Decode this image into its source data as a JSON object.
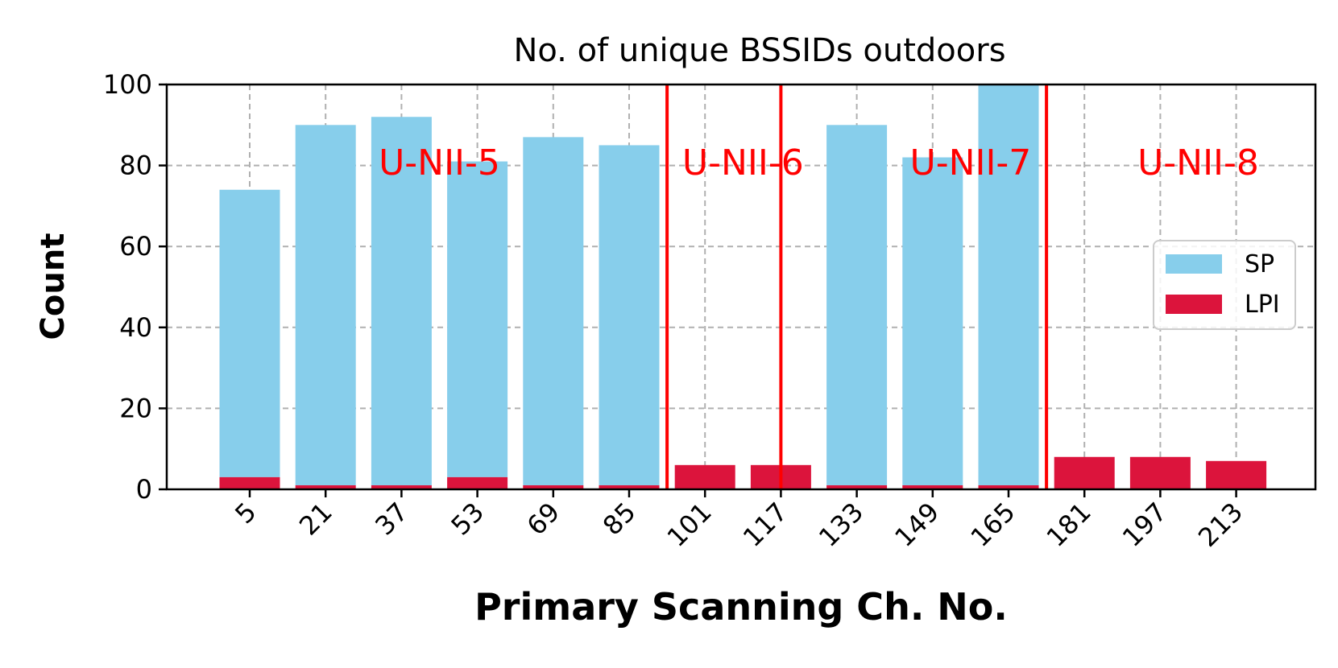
{
  "chart_data": {
    "type": "bar",
    "stacked": true,
    "title": "No. of unique BSSIDs outdoors",
    "xlabel": "Primary Scanning Ch. No.",
    "ylabel": "Count",
    "ylim": [
      0,
      100
    ],
    "yticks": [
      "0",
      "20",
      "40",
      "60",
      "80",
      "100"
    ],
    "grid": true,
    "legend_position": "center-right",
    "categories": [
      "5",
      "21",
      "37",
      "53",
      "69",
      "85",
      "101",
      "117",
      "133",
      "149",
      "165",
      "181",
      "197",
      "213"
    ],
    "series": [
      {
        "name": "SP",
        "color": "#87ceeb",
        "values": [
          71,
          89,
          91,
          78,
          86,
          84,
          0,
          0,
          89,
          81,
          99,
          0,
          0,
          0
        ]
      },
      {
        "name": "LPI",
        "color": "#dc143c",
        "values": [
          3,
          1,
          1,
          3,
          1,
          1,
          6,
          6,
          1,
          1,
          1,
          8,
          8,
          7
        ]
      }
    ],
    "band_labels": [
      {
        "text": "U-NII-5",
        "at_category": 2.5
      },
      {
        "text": "U-NII-6",
        "at_category": 6.5
      },
      {
        "text": "U-NII-7",
        "at_category": 9.5
      },
      {
        "text": "U-NII-8",
        "at_category": 12.5
      }
    ],
    "band_separators": [
      5.5,
      7.0,
      10.5
    ],
    "annotation_color": "#ff0000"
  }
}
